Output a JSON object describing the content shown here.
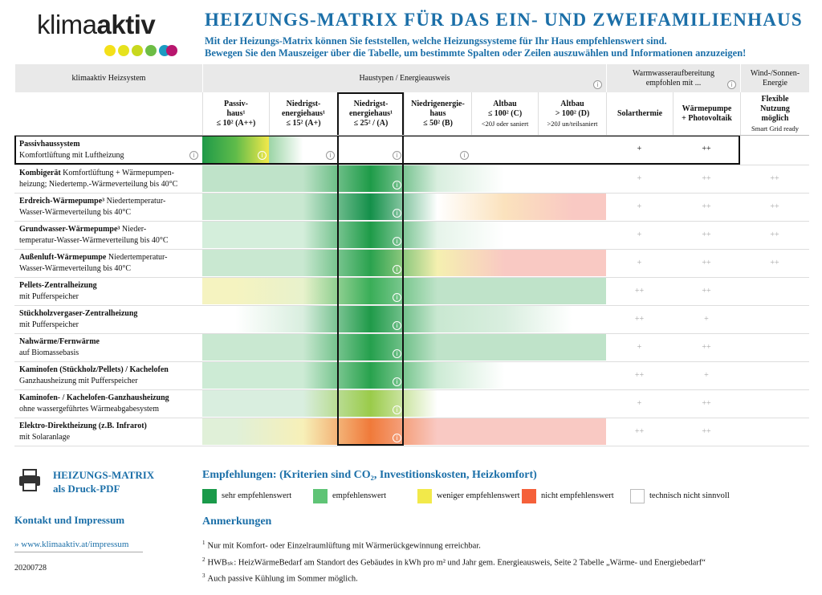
{
  "logo": {
    "light": "klima",
    "bold": "aktiv"
  },
  "header": {
    "title": "HEIZUNGS-MATRIX FÜR DAS EIN- UND ZWEIFAMILIENHAUS",
    "subtitle": [
      "Mit der Heizungs-Matrix können Sie feststellen, welche Heizungssysteme für Ihr Haus empfehlenswert sind.",
      "Bewegen Sie den Mauszeiger über die Tabelle, um bestimmte Spalten oder Zeilen auszuwählen und Informationen anzuzeigen!"
    ]
  },
  "table": {
    "groups": [
      {
        "lines": [
          "klimaaktiv Heizsystem"
        ]
      },
      {
        "lines": [
          "Haustypen / Energieausweis"
        ]
      },
      {
        "lines": [
          "Warmwasseraufbereitung",
          "empfohlen mit ..."
        ]
      },
      {
        "lines": [
          "Wind-/Sonnen-",
          "Energie"
        ]
      }
    ],
    "columns": [
      {
        "lines": [
          "Passiv-",
          "haus¹",
          "≤ 10² (A++)"
        ]
      },
      {
        "lines": [
          "Niedrigst-",
          "energiehaus¹",
          "≤ 15² (A+)"
        ]
      },
      {
        "lines": [
          "Niedrigst-",
          "energiehaus¹",
          "≤ 25² / (A)"
        ]
      },
      {
        "lines": [
          "Niedrigenergie-",
          "haus",
          "≤ 50² (B)"
        ]
      },
      {
        "lines": [
          "Altbau",
          "≤ 100² (C)",
          "<20J oder saniert"
        ]
      },
      {
        "lines": [
          "Altbau",
          "> 100² (D)",
          ">20J un/teilsaniert"
        ]
      },
      {
        "lines": [
          "Solarthermie"
        ]
      },
      {
        "lines": [
          "Wärmepumpe",
          "+ Photovoltaik"
        ]
      },
      {
        "lines": [
          "Flexible",
          "Nutzung",
          "möglich",
          "Smart Grid ready"
        ]
      }
    ],
    "rows": [
      {
        "name": "Passivhaussystem",
        "desc": [
          "Komfortlüftung mit Luftheizung"
        ],
        "colors": [
          "#3aab4e",
          "#ffffff",
          "#ffffff",
          "#ffffff",
          "#ffffff",
          "#ffffff"
        ],
        "water": [
          "+",
          "++"
        ]
      },
      {
        "name": "Kombigerät",
        "inline": "Komfortlüftung + Wärmepumpen-",
        "desc": [
          "heizung; Niedertemp.-Wärmeverteilung bis 40°C"
        ],
        "colors": [
          "#bfe3c9",
          "#bfe3c9",
          "#1e9b48",
          "#d9eedf",
          "#ffffff",
          "#ffffff"
        ],
        "water": [
          "+",
          "++",
          "++"
        ]
      },
      {
        "name": "Erdreich-Wärmepumpe³",
        "inline": "Niedertemperatur-",
        "desc": [
          "Wasser-Wärmeverteilung bis 40°C"
        ],
        "colors": [
          "#c9e8d1",
          "#c9e8d1",
          "#14904a",
          "#ffffff",
          "#fbe2bd",
          "#f9c9c3"
        ],
        "water": [
          "+",
          "++",
          "++"
        ]
      },
      {
        "name": "Grundwasser-Wärmepumpe³",
        "inline": "Nieder-",
        "desc": [
          "temperatur-Wasser-Wärmeverteilung bis 40°C"
        ],
        "colors": [
          "#d4eedb",
          "#d4eedb",
          "#1e9b48",
          "#e6f4ea",
          "#ffffff",
          "#ffffff"
        ],
        "water": [
          "+",
          "++",
          "++"
        ]
      },
      {
        "name": "Außenluft-Wärmepumpe",
        "inline": "Niedertemperatur-",
        "desc": [
          "Wasser-Wärmeverteilung bis 40°C"
        ],
        "colors": [
          "#c9e8d1",
          "#c9e8d1",
          "#2aa24e",
          "#f5f0b0",
          "#f9c9c3",
          "#f9c9c3"
        ],
        "water": [
          "+",
          "++",
          "++"
        ]
      },
      {
        "name": "Pellets-Zentralheizung",
        "desc": [
          "mit Pufferspeicher"
        ],
        "colors": [
          "#f5f3c0",
          "#e8f2cc",
          "#3aae58",
          "#bfe3c9",
          "#bfe3c9",
          "#bfe3c9"
        ],
        "water": [
          "++",
          "++"
        ]
      },
      {
        "name": "Stückholzvergaser-Zentralheizung",
        "desc": [
          "mit Pufferspeicher"
        ],
        "colors": [
          "#ffffff",
          "#d9eedf",
          "#1f9a49",
          "#c9e8d1",
          "#d9eedf",
          "#ffffff"
        ],
        "water": [
          "++",
          "+"
        ]
      },
      {
        "name": "Nahwärme/Fernwärme",
        "desc": [
          "auf Biomassebasis"
        ],
        "colors": [
          "#c9e8d1",
          "#c9e8d1",
          "#25a04d",
          "#bfe3c9",
          "#bfe3c9",
          "#bfe3c9"
        ],
        "water": [
          "+",
          "++"
        ]
      },
      {
        "name": "Kaminofen (Stückholz/Pellets) / Kachelofen",
        "desc": [
          "Ganzhausheizung mit Pufferspeicher"
        ],
        "colors": [
          "#cdebd5",
          "#cdebd5",
          "#28a24d",
          "#cdebd5",
          "#ffffff",
          "#ffffff"
        ],
        "water": [
          "++",
          "+"
        ]
      },
      {
        "name": "Kaminofen- / Kachelofen-Ganzhausheizung",
        "desc": [
          "ohne wassergeführtes Wärmeabgabesystem"
        ],
        "colors": [
          "#d9eedf",
          "#d9eedf",
          "#9acb4a",
          "#ffffff",
          "#ffffff",
          "#ffffff"
        ],
        "water": [
          "+",
          "++"
        ]
      },
      {
        "name": "Elektro-Direktheizung (z.B. Infrarot)",
        "desc": [
          "mit Solaranlage"
        ],
        "colors": [
          "#e0f0d8",
          "#f7f0b8",
          "#f07a3a",
          "#f9c9c3",
          "#f9c9c3",
          "#f9c9c3"
        ],
        "water": [
          "++",
          "++"
        ]
      }
    ]
  },
  "footer": {
    "pdf": [
      "HEIZUNGS-MATRIX",
      "als Druck-PDF"
    ],
    "contact": "Kontakt und Impressum",
    "link": "» www.klimaaktiv.at/impressum",
    "date": "20200728"
  },
  "legend": {
    "title": "Empfehlungen: (Kriterien sind CO₂, Investitionskosten, Heizkomfort)",
    "items": [
      {
        "label": "sehr empfehlenswert",
        "color": "#1a9a4a"
      },
      {
        "label": "empfehlenswert",
        "color": "#5fc476"
      },
      {
        "label": "weniger empfehlenswert",
        "color": "#f2e94a"
      },
      {
        "label": "nicht empfehlenswert",
        "color": "#f5603a"
      },
      {
        "label": "technisch nicht sinnvoll",
        "color": "#ffffff"
      }
    ]
  },
  "notes": {
    "title": "Anmerkungen",
    "items": [
      {
        "mark": "1",
        "text": "Nur mit Komfort- oder Einzelraumlüftung mit Wärmerückgewinnung erreichbar."
      },
      {
        "mark": "2",
        "text": "HWBₛₖ: HeizWärmeBedarf am Standort des Gebäudes in kWh pro m² und Jahr gem. Energieausweis, Seite 2 Tabelle „Wärme- und Energiebedarf“"
      },
      {
        "mark": "3",
        "text": "Auch passive Kühlung im Sommer möglich."
      }
    ]
  }
}
